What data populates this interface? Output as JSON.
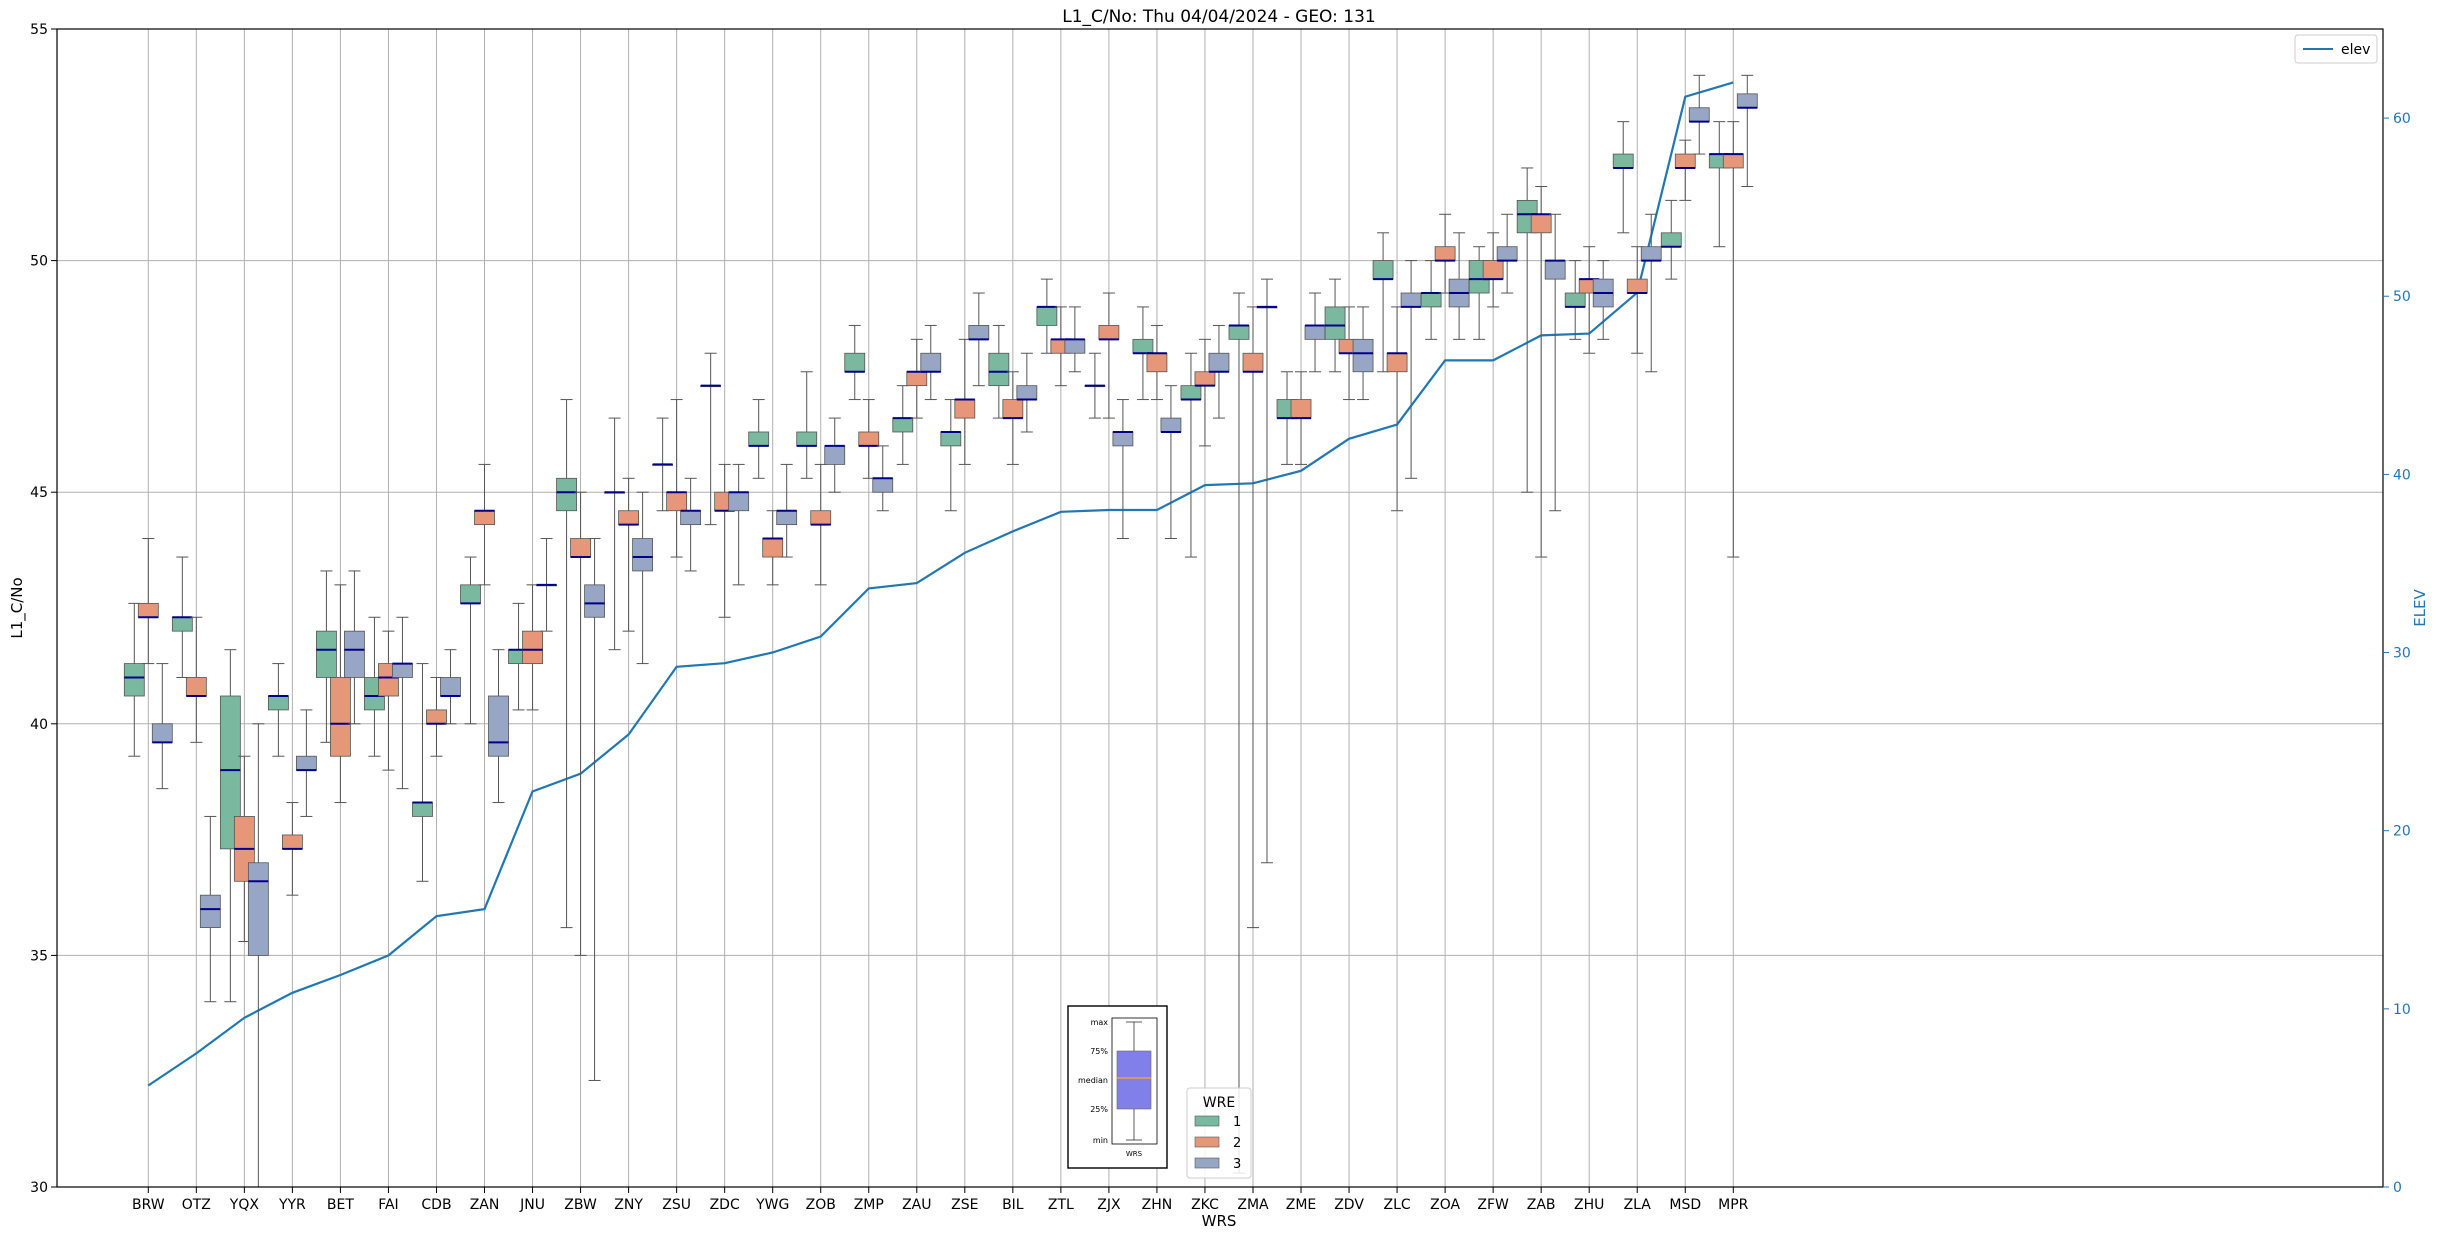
{
  "chart_data": {
    "type": "box",
    "title": "L1_C/No: Thu 04/04/2024 - GEO: 131",
    "xlabel": "WRS",
    "ylabel": "L1_C/No",
    "y2label": "ELEV",
    "ylim": [
      30,
      55
    ],
    "y2lim": [
      0,
      65
    ],
    "yticks": [
      30,
      35,
      40,
      45,
      50,
      55
    ],
    "y2ticks": [
      0,
      10,
      20,
      30,
      40,
      50,
      60
    ],
    "grid": true,
    "categories": [
      "BRW",
      "OTZ",
      "YQX",
      "YYR",
      "BET",
      "FAI",
      "CDB",
      "ZAN",
      "JNU",
      "ZBW",
      "ZNY",
      "ZSU",
      "ZDC",
      "YWG",
      "ZOB",
      "ZMP",
      "ZAU",
      "ZSE",
      "BIL",
      "ZTL",
      "ZJX",
      "ZHN",
      "ZKC",
      "ZMA",
      "ZME",
      "ZDV",
      "ZLC",
      "ZOA",
      "ZFW",
      "ZAB",
      "ZHU",
      "ZLA",
      "MSD",
      "MPR"
    ],
    "wre_legend": {
      "title": "WRE",
      "placement": "bottom-center",
      "entries": [
        {
          "name": "1",
          "color": "#7ab8a0"
        },
        {
          "name": "2",
          "color": "#e6977a"
        },
        {
          "name": "3",
          "color": "#97a6c4"
        }
      ]
    },
    "elev_legend": {
      "placement": "top-right",
      "entries": [
        {
          "name": "elev",
          "color": "#1f77b4"
        }
      ]
    },
    "key_box": {
      "labels": [
        "max",
        "75%",
        "median",
        "25%",
        "min"
      ],
      "xlabel": "WRS",
      "color": "#8080e8",
      "median_color": "#f0a040"
    },
    "boxes": [
      {
        "cat": "BRW",
        "wre": "1",
        "min": 39.3,
        "q1": 40.6,
        "median": 41.0,
        "q3": 41.3,
        "max": 42.6
      },
      {
        "cat": "BRW",
        "wre": "2",
        "min": 41.3,
        "q1": 42.3,
        "median": 42.3,
        "q3": 42.6,
        "max": 44.0
      },
      {
        "cat": "BRW",
        "wre": "3",
        "min": 38.6,
        "q1": 39.6,
        "median": 39.6,
        "q3": 40.0,
        "max": 41.3
      },
      {
        "cat": "OTZ",
        "wre": "1",
        "min": 41.0,
        "q1": 42.0,
        "median": 42.3,
        "q3": 42.3,
        "max": 43.6
      },
      {
        "cat": "OTZ",
        "wre": "2",
        "min": 39.6,
        "q1": 40.6,
        "median": 40.6,
        "q3": 41.0,
        "max": 42.3
      },
      {
        "cat": "YQX",
        "wre": "1",
        "min": 34.0,
        "q1": 37.3,
        "median": 39.0,
        "q3": 40.6,
        "max": 41.6
      },
      {
        "cat": "YQX",
        "wre": "2",
        "min": 35.3,
        "q1": 36.6,
        "median": 37.3,
        "q3": 38.0,
        "max": 39.3
      },
      {
        "cat": "YQX",
        "wre": "3",
        "min": 30.0,
        "q1": 35.0,
        "median": 36.6,
        "q3": 37.0,
        "max": 40.0
      },
      {
        "cat": "OTZ",
        "wre": "3",
        "min": 34.0,
        "q1": 35.6,
        "median": 36.0,
        "q3": 36.3,
        "max": 38.0
      },
      {
        "cat": "YYR",
        "wre": "1",
        "min": 39.3,
        "q1": 40.3,
        "median": 40.6,
        "q3": 40.6,
        "max": 41.3
      },
      {
        "cat": "YYR",
        "wre": "2",
        "min": 36.3,
        "q1": 37.3,
        "median": 37.3,
        "q3": 37.6,
        "max": 38.3
      },
      {
        "cat": "YYR",
        "wre": "3",
        "min": 38.0,
        "q1": 39.0,
        "median": 39.0,
        "q3": 39.3,
        "max": 40.3
      },
      {
        "cat": "BET",
        "wre": "1",
        "min": 39.6,
        "q1": 41.0,
        "median": 41.6,
        "q3": 42.0,
        "max": 43.3
      },
      {
        "cat": "BET",
        "wre": "2",
        "min": 38.3,
        "q1": 39.3,
        "median": 40.0,
        "q3": 41.0,
        "max": 43.0
      },
      {
        "cat": "BET",
        "wre": "3",
        "min": 40.0,
        "q1": 41.0,
        "median": 41.6,
        "q3": 42.0,
        "max": 43.3
      },
      {
        "cat": "FAI",
        "wre": "1",
        "min": 39.3,
        "q1": 40.3,
        "median": 40.6,
        "q3": 41.0,
        "max": 42.3
      },
      {
        "cat": "FAI",
        "wre": "2",
        "min": 39.0,
        "q1": 40.6,
        "median": 41.0,
        "q3": 41.3,
        "max": 42.0
      },
      {
        "cat": "FAI",
        "wre": "3",
        "min": 38.6,
        "q1": 41.0,
        "median": 41.3,
        "q3": 41.3,
        "max": 42.3
      },
      {
        "cat": "CDB",
        "wre": "1",
        "min": 36.6,
        "q1": 38.0,
        "median": 38.3,
        "q3": 38.3,
        "max": 41.3
      },
      {
        "cat": "CDB",
        "wre": "2",
        "min": 39.3,
        "q1": 40.0,
        "median": 40.0,
        "q3": 40.3,
        "max": 41.0
      },
      {
        "cat": "CDB",
        "wre": "3",
        "min": 40.0,
        "q1": 40.6,
        "median": 40.6,
        "q3": 41.0,
        "max": 41.6
      },
      {
        "cat": "ZAN",
        "wre": "1",
        "min": 40.0,
        "q1": 42.6,
        "median": 42.6,
        "q3": 43.0,
        "max": 43.6
      },
      {
        "cat": "ZAN",
        "wre": "2",
        "min": 43.0,
        "q1": 44.3,
        "median": 44.6,
        "q3": 44.6,
        "max": 45.6
      },
      {
        "cat": "ZAN",
        "wre": "3",
        "min": 38.3,
        "q1": 39.3,
        "median": 39.6,
        "q3": 40.6,
        "max": 41.6
      },
      {
        "cat": "JNU",
        "wre": "1",
        "min": 40.3,
        "q1": 41.3,
        "median": 41.6,
        "q3": 41.6,
        "max": 42.6
      },
      {
        "cat": "JNU",
        "wre": "2",
        "min": 40.3,
        "q1": 41.3,
        "median": 41.6,
        "q3": 42.0,
        "max": 43.0
      },
      {
        "cat": "JNU",
        "wre": "3",
        "min": 42.0,
        "q1": 43.0,
        "median": 43.0,
        "q3": 43.0,
        "max": 44.0
      },
      {
        "cat": "ZBW",
        "wre": "1",
        "min": 35.6,
        "q1": 44.6,
        "median": 45.0,
        "q3": 45.3,
        "max": 47.0
      },
      {
        "cat": "ZBW",
        "wre": "2",
        "min": 35.0,
        "q1": 43.6,
        "median": 43.6,
        "q3": 44.0,
        "max": 45.0
      },
      {
        "cat": "ZBW",
        "wre": "3",
        "min": 32.3,
        "q1": 42.3,
        "median": 42.6,
        "q3": 43.0,
        "max": 44.0
      },
      {
        "cat": "ZNY",
        "wre": "1",
        "min": 41.6,
        "q1": 45.0,
        "median": 45.0,
        "q3": 45.0,
        "max": 46.6
      },
      {
        "cat": "ZNY",
        "wre": "2",
        "min": 42.0,
        "q1": 44.3,
        "median": 44.3,
        "q3": 44.6,
        "max": 45.3
      },
      {
        "cat": "ZNY",
        "wre": "3",
        "min": 41.3,
        "q1": 43.3,
        "median": 43.6,
        "q3": 44.0,
        "max": 45.0
      },
      {
        "cat": "ZSU",
        "wre": "1",
        "min": 44.6,
        "q1": 45.6,
        "median": 45.6,
        "q3": 45.6,
        "max": 46.6
      },
      {
        "cat": "ZSU",
        "wre": "2",
        "min": 43.6,
        "q1": 44.6,
        "median": 45.0,
        "q3": 45.0,
        "max": 47.0
      },
      {
        "cat": "ZSU",
        "wre": "3",
        "min": 43.3,
        "q1": 44.3,
        "median": 44.6,
        "q3": 44.6,
        "max": 45.3
      },
      {
        "cat": "ZDC",
        "wre": "1",
        "min": 44.3,
        "q1": 47.3,
        "median": 47.3,
        "q3": 47.3,
        "max": 48.0
      },
      {
        "cat": "ZDC",
        "wre": "2",
        "min": 42.3,
        "q1": 44.6,
        "median": 44.6,
        "q3": 45.0,
        "max": 45.6
      },
      {
        "cat": "ZDC",
        "wre": "3",
        "min": 43.0,
        "q1": 44.6,
        "median": 45.0,
        "q3": 45.0,
        "max": 45.6
      },
      {
        "cat": "YWG",
        "wre": "1",
        "min": 45.3,
        "q1": 46.0,
        "median": 46.0,
        "q3": 46.3,
        "max": 47.0
      },
      {
        "cat": "YWG",
        "wre": "2",
        "min": 43.0,
        "q1": 43.6,
        "median": 44.0,
        "q3": 44.0,
        "max": 44.6
      },
      {
        "cat": "YWG",
        "wre": "3",
        "min": 43.6,
        "q1": 44.3,
        "median": 44.6,
        "q3": 44.6,
        "max": 45.6
      },
      {
        "cat": "ZOB",
        "wre": "1",
        "min": 45.3,
        "q1": 46.0,
        "median": 46.0,
        "q3": 46.3,
        "max": 47.6
      },
      {
        "cat": "ZOB",
        "wre": "2",
        "min": 43.0,
        "q1": 44.3,
        "median": 44.3,
        "q3": 44.6,
        "max": 45.6
      },
      {
        "cat": "ZOB",
        "wre": "3",
        "min": 45.0,
        "q1": 45.6,
        "median": 46.0,
        "q3": 46.0,
        "max": 46.6
      },
      {
        "cat": "ZMP",
        "wre": "1",
        "min": 47.0,
        "q1": 47.6,
        "median": 47.6,
        "q3": 48.0,
        "max": 48.6
      },
      {
        "cat": "ZMP",
        "wre": "2",
        "min": 45.3,
        "q1": 46.0,
        "median": 46.0,
        "q3": 46.3,
        "max": 47.0
      },
      {
        "cat": "ZMP",
        "wre": "3",
        "min": 44.6,
        "q1": 45.0,
        "median": 45.3,
        "q3": 45.3,
        "max": 46.0
      },
      {
        "cat": "ZAU",
        "wre": "1",
        "min": 45.6,
        "q1": 46.3,
        "median": 46.6,
        "q3": 46.6,
        "max": 47.3
      },
      {
        "cat": "ZAU",
        "wre": "2",
        "min": 46.6,
        "q1": 47.3,
        "median": 47.6,
        "q3": 47.6,
        "max": 48.3
      },
      {
        "cat": "ZAU",
        "wre": "3",
        "min": 47.0,
        "q1": 47.6,
        "median": 47.6,
        "q3": 48.0,
        "max": 48.6
      },
      {
        "cat": "ZSE",
        "wre": "1",
        "min": 44.6,
        "q1": 46.0,
        "median": 46.3,
        "q3": 46.3,
        "max": 47.0
      },
      {
        "cat": "ZSE",
        "wre": "2",
        "min": 45.6,
        "q1": 46.6,
        "median": 47.0,
        "q3": 47.0,
        "max": 48.3
      },
      {
        "cat": "ZSE",
        "wre": "3",
        "min": 47.3,
        "q1": 48.3,
        "median": 48.3,
        "q3": 48.6,
        "max": 49.3
      },
      {
        "cat": "BIL",
        "wre": "1",
        "min": 46.6,
        "q1": 47.3,
        "median": 47.6,
        "q3": 48.0,
        "max": 48.6
      },
      {
        "cat": "BIL",
        "wre": "2",
        "min": 45.6,
        "q1": 46.6,
        "median": 46.6,
        "q3": 47.0,
        "max": 47.6
      },
      {
        "cat": "BIL",
        "wre": "3",
        "min": 46.3,
        "q1": 47.0,
        "median": 47.0,
        "q3": 47.3,
        "max": 48.0
      },
      {
        "cat": "ZTL",
        "wre": "1",
        "min": 48.0,
        "q1": 48.6,
        "median": 49.0,
        "q3": 49.0,
        "max": 49.6
      },
      {
        "cat": "ZTL",
        "wre": "2",
        "min": 47.3,
        "q1": 48.0,
        "median": 48.3,
        "q3": 48.3,
        "max": 49.0
      },
      {
        "cat": "ZTL",
        "wre": "3",
        "min": 47.6,
        "q1": 48.0,
        "median": 48.3,
        "q3": 48.3,
        "max": 49.0
      },
      {
        "cat": "ZJX",
        "wre": "1",
        "min": 46.6,
        "q1": 47.3,
        "median": 47.3,
        "q3": 47.3,
        "max": 48.0
      },
      {
        "cat": "ZJX",
        "wre": "2",
        "min": 46.6,
        "q1": 48.3,
        "median": 48.3,
        "q3": 48.6,
        "max": 49.3
      },
      {
        "cat": "ZJX",
        "wre": "3",
        "min": 44.0,
        "q1": 46.0,
        "median": 46.3,
        "q3": 46.3,
        "max": 47.0
      },
      {
        "cat": "ZHN",
        "wre": "1",
        "min": 47.0,
        "q1": 48.0,
        "median": 48.0,
        "q3": 48.3,
        "max": 49.0
      },
      {
        "cat": "ZHN",
        "wre": "2",
        "min": 47.0,
        "q1": 47.6,
        "median": 48.0,
        "q3": 48.0,
        "max": 48.6
      },
      {
        "cat": "ZHN",
        "wre": "3",
        "min": 44.0,
        "q1": 46.3,
        "median": 46.3,
        "q3": 46.6,
        "max": 47.3
      },
      {
        "cat": "ZKC",
        "wre": "1",
        "min": 43.6,
        "q1": 47.0,
        "median": 47.0,
        "q3": 47.3,
        "max": 48.0
      },
      {
        "cat": "ZKC",
        "wre": "2",
        "min": 46.0,
        "q1": 47.3,
        "median": 47.3,
        "q3": 47.6,
        "max": 48.3
      },
      {
        "cat": "ZKC",
        "wre": "3",
        "min": 46.6,
        "q1": 47.6,
        "median": 47.6,
        "q3": 48.0,
        "max": 48.6
      },
      {
        "cat": "ZMA",
        "wre": "1",
        "min": 30.3,
        "q1": 48.3,
        "median": 48.6,
        "q3": 48.6,
        "max": 49.3
      },
      {
        "cat": "ZMA",
        "wre": "2",
        "min": 35.6,
        "q1": 47.6,
        "median": 47.6,
        "q3": 48.0,
        "max": 49.0
      },
      {
        "cat": "ZMA",
        "wre": "3",
        "min": 37.0,
        "q1": 49.0,
        "median": 49.0,
        "q3": 49.0,
        "max": 49.6
      },
      {
        "cat": "ZME",
        "wre": "1",
        "min": 45.6,
        "q1": 46.6,
        "median": 46.6,
        "q3": 47.0,
        "max": 47.6
      },
      {
        "cat": "ZME",
        "wre": "2",
        "min": 45.6,
        "q1": 46.6,
        "median": 46.6,
        "q3": 47.0,
        "max": 47.6
      },
      {
        "cat": "ZME",
        "wre": "3",
        "min": 47.6,
        "q1": 48.3,
        "median": 48.6,
        "q3": 48.6,
        "max": 49.3
      },
      {
        "cat": "ZDV",
        "wre": "1",
        "min": 47.6,
        "q1": 48.3,
        "median": 48.6,
        "q3": 49.0,
        "max": 49.6
      },
      {
        "cat": "ZDV",
        "wre": "2",
        "min": 47.0,
        "q1": 48.0,
        "median": 48.0,
        "q3": 48.3,
        "max": 49.0
      },
      {
        "cat": "ZDV",
        "wre": "3",
        "min": 47.0,
        "q1": 47.6,
        "median": 48.0,
        "q3": 48.3,
        "max": 49.0
      },
      {
        "cat": "ZLC",
        "wre": "1",
        "min": 47.6,
        "q1": 49.6,
        "median": 49.6,
        "q3": 50.0,
        "max": 50.6
      },
      {
        "cat": "ZLC",
        "wre": "2",
        "min": 44.6,
        "q1": 47.6,
        "median": 48.0,
        "q3": 48.0,
        "max": 49.0
      },
      {
        "cat": "ZLC",
        "wre": "3",
        "min": 45.3,
        "q1": 49.0,
        "median": 49.0,
        "q3": 49.3,
        "max": 50.0
      },
      {
        "cat": "ZOA",
        "wre": "1",
        "min": 48.3,
        "q1": 49.0,
        "median": 49.3,
        "q3": 49.3,
        "max": 50.0
      },
      {
        "cat": "ZOA",
        "wre": "2",
        "min": 49.3,
        "q1": 50.0,
        "median": 50.0,
        "q3": 50.3,
        "max": 51.0
      },
      {
        "cat": "ZOA",
        "wre": "3",
        "min": 48.3,
        "q1": 49.0,
        "median": 49.3,
        "q3": 49.6,
        "max": 50.6
      },
      {
        "cat": "ZFW",
        "wre": "1",
        "min": 48.3,
        "q1": 49.3,
        "median": 49.6,
        "q3": 50.0,
        "max": 50.3
      },
      {
        "cat": "ZFW",
        "wre": "2",
        "min": 49.0,
        "q1": 49.6,
        "median": 49.6,
        "q3": 50.0,
        "max": 50.6
      },
      {
        "cat": "ZFW",
        "wre": "3",
        "min": 49.3,
        "q1": 50.0,
        "median": 50.0,
        "q3": 50.3,
        "max": 51.0
      },
      {
        "cat": "ZAB",
        "wre": "1",
        "min": 45.0,
        "q1": 50.6,
        "median": 51.0,
        "q3": 51.3,
        "max": 52.0
      },
      {
        "cat": "ZAB",
        "wre": "2",
        "min": 43.6,
        "q1": 50.6,
        "median": 51.0,
        "q3": 51.0,
        "max": 51.6
      },
      {
        "cat": "ZAB",
        "wre": "3",
        "min": 44.6,
        "q1": 49.6,
        "median": 50.0,
        "q3": 50.0,
        "max": 51.0
      },
      {
        "cat": "ZHU",
        "wre": "1",
        "min": 48.3,
        "q1": 49.0,
        "median": 49.0,
        "q3": 49.3,
        "max": 50.0
      },
      {
        "cat": "ZHU",
        "wre": "2",
        "min": 48.0,
        "q1": 49.3,
        "median": 49.6,
        "q3": 49.6,
        "max": 50.3
      },
      {
        "cat": "ZHU",
        "wre": "3",
        "min": 48.3,
        "q1": 49.0,
        "median": 49.3,
        "q3": 49.6,
        "max": 50.0
      },
      {
        "cat": "ZLA",
        "wre": "1",
        "min": 50.6,
        "q1": 52.0,
        "median": 52.0,
        "q3": 52.3,
        "max": 53.0
      },
      {
        "cat": "ZLA",
        "wre": "2",
        "min": 48.0,
        "q1": 49.3,
        "median": 49.3,
        "q3": 49.6,
        "max": 50.3
      },
      {
        "cat": "ZLA",
        "wre": "3",
        "min": 47.6,
        "q1": 50.0,
        "median": 50.0,
        "q3": 50.3,
        "max": 51.0
      },
      {
        "cat": "MSD",
        "wre": "1",
        "min": 49.6,
        "q1": 50.3,
        "median": 50.3,
        "q3": 50.6,
        "max": 51.3
      },
      {
        "cat": "MSD",
        "wre": "2",
        "min": 51.3,
        "q1": 52.0,
        "median": 52.0,
        "q3": 52.3,
        "max": 52.6
      },
      {
        "cat": "MSD",
        "wre": "3",
        "min": 52.3,
        "q1": 53.0,
        "median": 53.0,
        "q3": 53.3,
        "max": 54.0
      },
      {
        "cat": "MPR",
        "wre": "1",
        "min": 50.3,
        "q1": 52.0,
        "median": 52.3,
        "q3": 52.3,
        "max": 53.0
      },
      {
        "cat": "MPR",
        "wre": "2",
        "min": 43.6,
        "q1": 52.0,
        "median": 52.3,
        "q3": 52.3,
        "max": 53.0
      },
      {
        "cat": "MPR",
        "wre": "3",
        "min": 51.6,
        "q1": 53.3,
        "median": 53.3,
        "q3": 53.6,
        "max": 54.0
      }
    ],
    "elev_series": {
      "name": "elev",
      "color": "#1f77b4",
      "values": [
        5.7,
        7.5,
        9.5,
        10.9,
        11.9,
        13.0,
        15.2,
        15.6,
        22.2,
        23.2,
        25.4,
        29.2,
        29.4,
        30.0,
        30.9,
        33.6,
        33.9,
        35.6,
        36.8,
        37.9,
        38.0,
        38.0,
        39.4,
        39.5,
        40.2,
        42.0,
        42.8,
        46.4,
        46.4,
        47.8,
        47.9,
        50.2,
        61.2,
        62.0
      ]
    }
  }
}
